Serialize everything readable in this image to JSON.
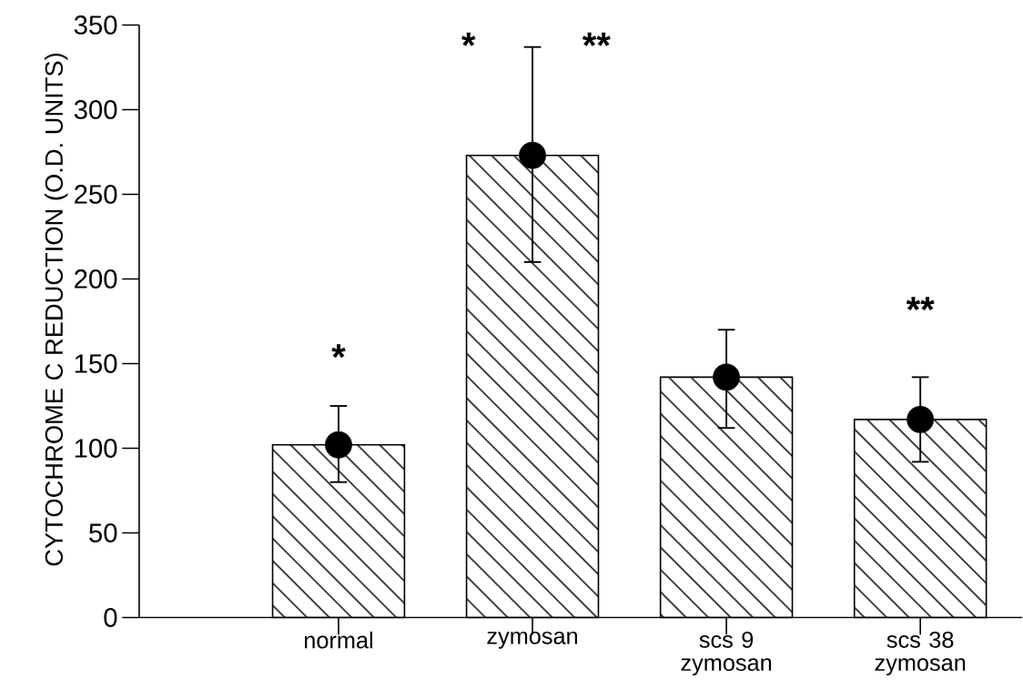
{
  "chart_data": {
    "type": "bar",
    "ylabel": "CYTOCHROME C REDUCTION (O.D. UNITS)",
    "categories": [
      "normal",
      "zymosan",
      "scs 9 zymosan",
      "scs 38 zymosan"
    ],
    "ylim": [
      0,
      350
    ],
    "yticks": [
      0,
      50,
      100,
      150,
      200,
      250,
      300,
      350
    ],
    "marker": "circle",
    "series": [
      {
        "color": "#000000",
        "values": [
          102,
          273,
          142,
          117
        ]
      },
      {
        "type": "scatter",
        "color": "#000000",
        "x": [
          "normal",
          "zymosan",
          "scs 9 zymosan",
          "scs 38 zymosan"
        ],
        "values": [
          102,
          273,
          142,
          117
        ],
        "errors": [
          [
            80,
            125
          ],
          [
            210,
            337
          ],
          [
            112,
            170
          ],
          [
            92,
            142
          ]
        ]
      }
    ],
    "annotations": [
      "*",
      "*",
      "**",
      "**"
    ]
  }
}
